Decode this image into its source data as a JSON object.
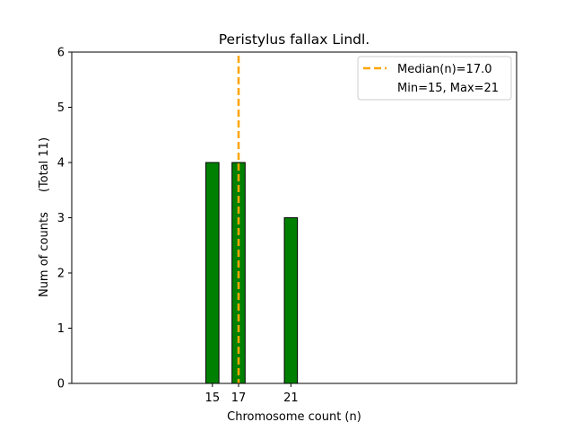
{
  "chart_data": {
    "type": "bar",
    "title": "Peristylus fallax Lindl.",
    "xlabel": "Chromosome count (n)",
    "ylabel": "Num of counts",
    "ylabel_total": "(Total 11)",
    "x": [
      15,
      17,
      21
    ],
    "values": [
      4,
      4,
      3
    ],
    "xticks": [
      15,
      17,
      21
    ],
    "yticks": [
      0,
      1,
      2,
      3,
      4,
      5,
      6
    ],
    "xlim": [
      4.25,
      38.25
    ],
    "ylim": [
      0,
      6
    ],
    "bar_color": "#008000",
    "bar_edge_color": "#000000",
    "median": 17.0,
    "median_color": "#FFA500",
    "grid": false,
    "legend_placement": "top-right",
    "legend": {
      "median_label": "Median(n)=17.0",
      "range_label": "Min=15, Max=21"
    }
  }
}
